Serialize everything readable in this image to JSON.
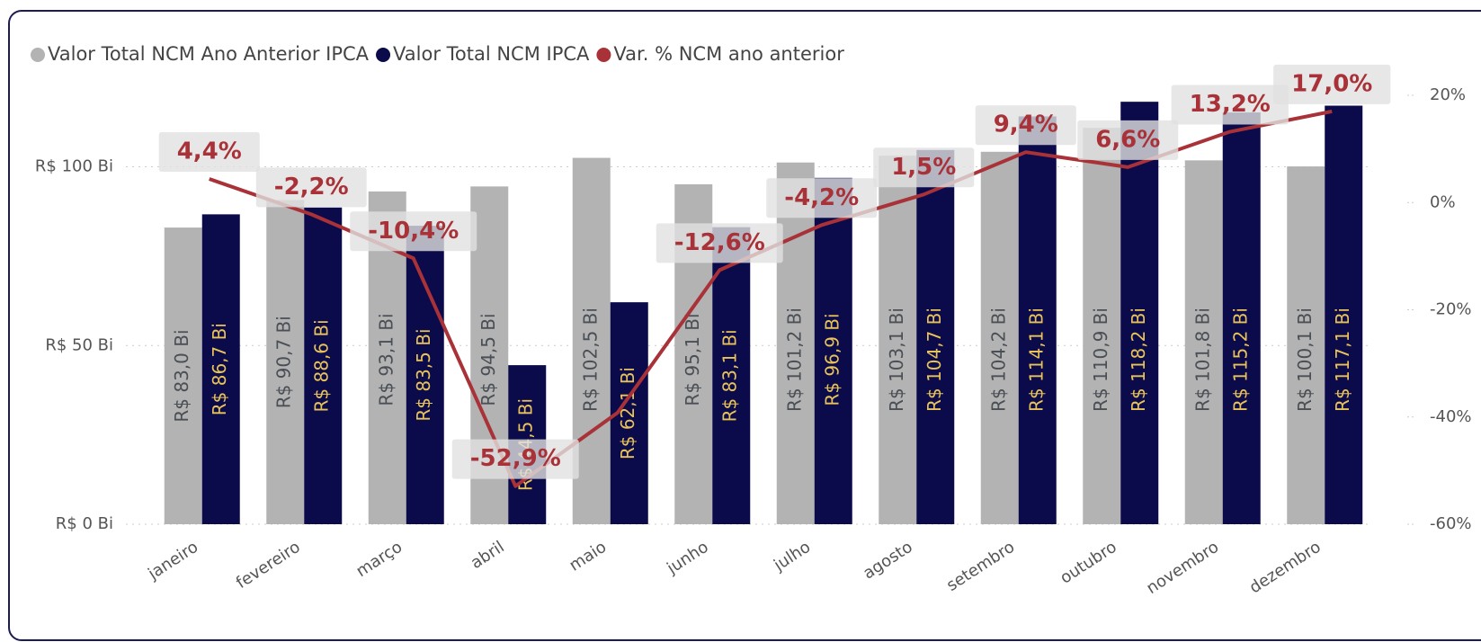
{
  "chart_data": {
    "type": "bar_line",
    "categories": [
      "janeiro",
      "fevereiro",
      "março",
      "abril",
      "maio",
      "junho",
      "julho",
      "agosto",
      "setembro",
      "outubro",
      "novembro",
      "dezembro"
    ],
    "series": [
      {
        "name": "Valor Total NCM Ano Anterior IPCA",
        "color": "#b3b3b3",
        "values": [
          83.0,
          90.7,
          93.1,
          94.5,
          102.5,
          95.1,
          101.2,
          103.1,
          104.2,
          110.9,
          101.8,
          100.1
        ],
        "value_labels": [
          "R$ 83,0 Bi",
          "R$ 90,7 Bi",
          "R$ 93,1 Bi",
          "R$ 94,5 Bi",
          "R$ 102,5 Bi",
          "R$ 95,1 Bi",
          "R$ 101,2 Bi",
          "R$ 103,1 Bi",
          "R$ 104,2 Bi",
          "R$ 110,9 Bi",
          "R$ 101,8 Bi",
          "R$ 100,1 Bi"
        ]
      },
      {
        "name": "Valor Total NCM IPCA",
        "color": "#0b0a4a",
        "values": [
          86.7,
          88.6,
          83.5,
          44.5,
          62.1,
          83.1,
          96.9,
          104.7,
          114.1,
          118.2,
          115.2,
          117.1
        ],
        "value_labels": [
          "R$ 86,7 Bi",
          "R$ 88,6 Bi",
          "R$ 83,5 Bi",
          "R$ 44,5 Bi",
          "R$ 62,1 Bi",
          "R$ 83,1 Bi",
          "R$ 96,9 Bi",
          "R$ 104,7 Bi",
          "R$ 114,1 Bi",
          "R$ 118,2 Bi",
          "R$ 115,2 Bi",
          "R$ 117,1 Bi"
        ]
      },
      {
        "name": "Var. % NCM ano anterior",
        "color": "#a83238",
        "axis": "y2",
        "type": "line",
        "values": [
          4.4,
          -2.2,
          -10.4,
          -52.9,
          -39.2,
          -12.6,
          -4.2,
          1.5,
          9.4,
          6.6,
          13.2,
          17.0
        ],
        "value_labels": [
          "4,4%",
          "-2,2%",
          "-10,4%",
          "-52,9%",
          null,
          "-12,6%",
          "-4,2%",
          "1,5%",
          "9,4%",
          "6,6%",
          "13,2%",
          "17,0%"
        ]
      }
    ],
    "ylim": [
      0,
      120
    ],
    "yticks": [
      {
        "value": 0,
        "label": "R$ 0 Bi"
      },
      {
        "value": 50,
        "label": "R$ 50 Bi"
      },
      {
        "value": 100,
        "label": "R$ 100 Bi"
      }
    ],
    "y2lim": [
      -60,
      20
    ],
    "y2ticks": [
      {
        "value": -60,
        "label": "-60%"
      },
      {
        "value": -40,
        "label": "-40%"
      },
      {
        "value": -20,
        "label": "-20%"
      },
      {
        "value": 0,
        "label": "0%"
      },
      {
        "value": 20,
        "label": "20%"
      }
    ],
    "grid": true,
    "legend": "top-left"
  }
}
